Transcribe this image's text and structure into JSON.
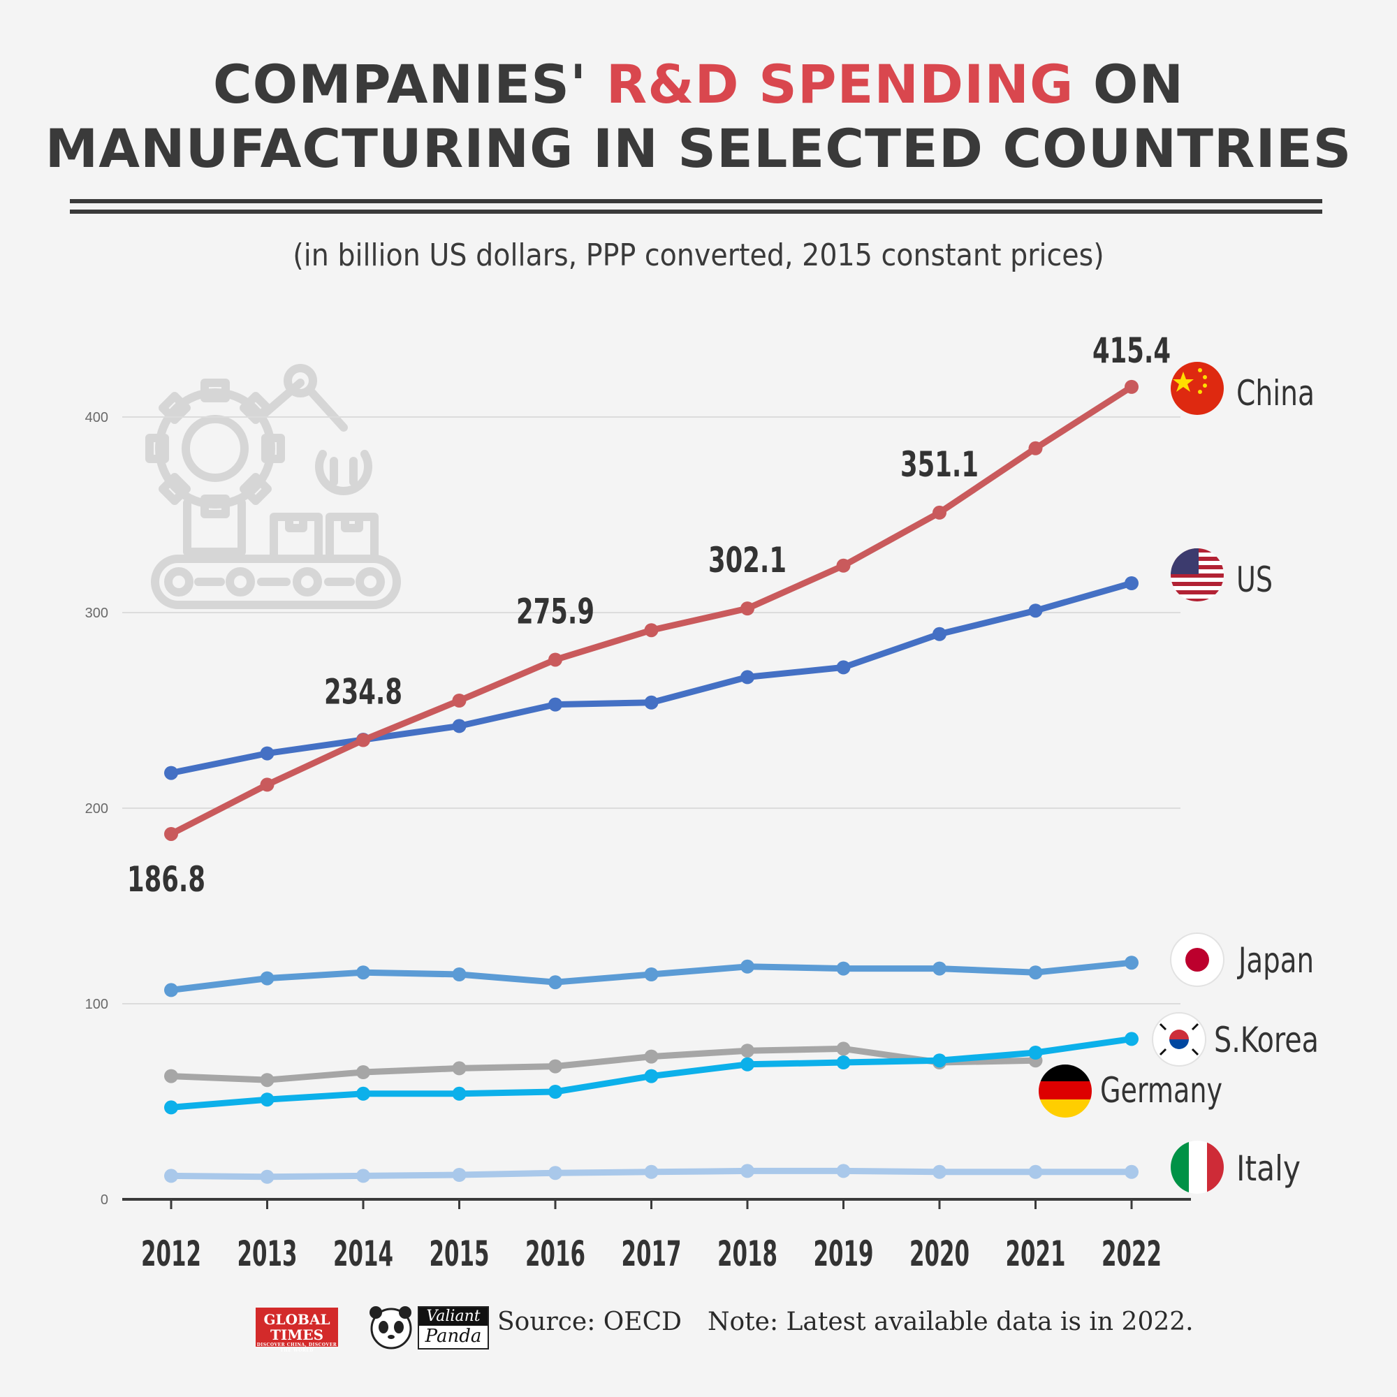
{
  "header": {
    "title_part1": "COMPANIES'",
    "title_accent": "R&D SPENDING",
    "title_part2": "ON",
    "title_line2": "MANUFACTURING IN SELECTED COUNTRIES",
    "subtitle": "(in billion US dollars, PPP converted, 2015 constant prices)"
  },
  "footer": {
    "logo_text": "GLOBAL TIMES",
    "logo_small": "DISCOVER CHINA, DISCOVER THE WORLD",
    "logo2_top": "Valiant",
    "logo2_bottom": "Panda",
    "source": "Source: OECD",
    "note": "Note: Latest available data is in 2022."
  },
  "colors": {
    "china": "#c95a5c",
    "us": "#4470c4",
    "japan": "#5b9bd5",
    "skorea": "#0cb0ea",
    "germany": "#a6a6a6",
    "italy": "#a9c8ea",
    "grid": "#dcdcdc",
    "axis": "#3a3a3a"
  },
  "chart_data": {
    "type": "line",
    "title": "COMPANIES' R&D SPENDING ON MANUFACTURING IN SELECTED COUNTRIES",
    "subtitle": "(in billion US dollars, PPP converted, 2015 constant prices)",
    "xlabel": "",
    "ylabel": "",
    "ylim": [
      0,
      440
    ],
    "yticks": [
      0,
      100,
      200,
      300,
      400
    ],
    "grid": true,
    "categories": [
      "2012",
      "2013",
      "2014",
      "2015",
      "2016",
      "2017",
      "2018",
      "2019",
      "2020",
      "2021",
      "2022"
    ],
    "series": [
      {
        "key": "china",
        "name": "China",
        "values": [
          186.8,
          212,
          234.8,
          255,
          275.9,
          291,
          302.1,
          324,
          351.1,
          384,
          415.4
        ],
        "labels": [
          "186.8",
          null,
          "234.8",
          null,
          "275.9",
          null,
          "302.1",
          null,
          "351.1",
          null,
          "415.4"
        ]
      },
      {
        "key": "us",
        "name": "US",
        "values": [
          218,
          228,
          235,
          242,
          253,
          254,
          267,
          272,
          289,
          301,
          315
        ]
      },
      {
        "key": "japan",
        "name": "Japan",
        "values": [
          107,
          113,
          116,
          115,
          111,
          115,
          119,
          118,
          118,
          116,
          121
        ]
      },
      {
        "key": "germany",
        "name": "Germany",
        "values": [
          63,
          61,
          65,
          67,
          68,
          73,
          76,
          77,
          70,
          71,
          null
        ]
      },
      {
        "key": "skorea",
        "name": "S.Korea",
        "values": [
          47,
          51,
          54,
          54,
          55,
          63,
          69,
          70,
          71,
          75,
          82
        ]
      },
      {
        "key": "italy",
        "name": "Italy",
        "values": [
          12,
          11.5,
          12,
          12.5,
          13.5,
          14,
          14.5,
          14.5,
          14,
          14,
          14
        ]
      }
    ],
    "legend": [
      {
        "key": "china",
        "label": "China"
      },
      {
        "key": "us",
        "label": "US"
      },
      {
        "key": "japan",
        "label": "Japan"
      },
      {
        "key": "skorea",
        "label": "S.Korea"
      },
      {
        "key": "germany",
        "label": "Germany"
      },
      {
        "key": "italy",
        "label": "Italy"
      }
    ]
  }
}
